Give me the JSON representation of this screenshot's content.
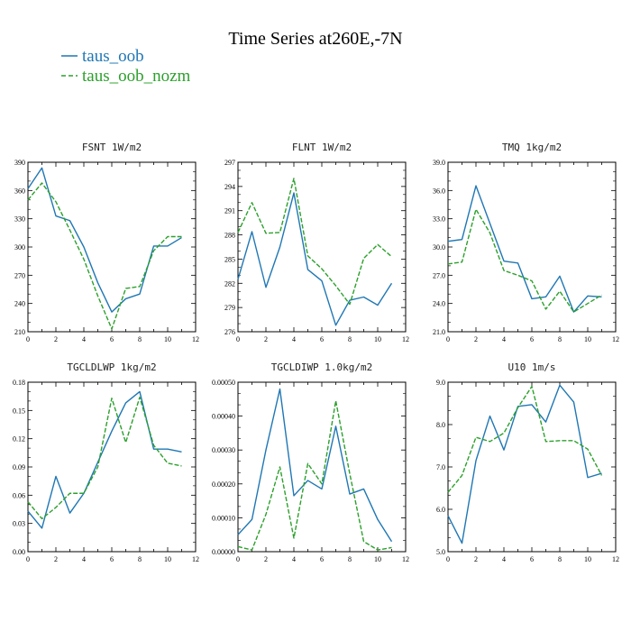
{
  "figure": {
    "title": "Time Series at260E,-7N"
  },
  "legend": [
    {
      "name": "taus_oob",
      "color": "#1f77b4",
      "dash": "solid"
    },
    {
      "name": "taus_oob_nozm",
      "color": "#2ca02c",
      "dash": "dashed"
    }
  ],
  "chart_data": [
    {
      "type": "line",
      "title": "FSNT  1W/m2",
      "x": [
        0,
        1,
        2,
        3,
        4,
        5,
        6,
        7,
        8,
        9,
        10,
        11
      ],
      "xlim": [
        0,
        12
      ],
      "xticks": [
        0,
        2,
        4,
        6,
        8,
        10,
        12
      ],
      "ylim": [
        210,
        390
      ],
      "yticks": [
        "210",
        "240",
        "270",
        "300",
        "330",
        "360",
        "390"
      ],
      "series": [
        {
          "name": "taus_oob",
          "values": [
            362,
            384,
            333,
            328,
            300,
            262,
            231,
            245,
            250,
            301,
            301,
            310
          ]
        },
        {
          "name": "taus_oob_nozm",
          "values": [
            350,
            368,
            348,
            318,
            287,
            248,
            213,
            256,
            258,
            296,
            311,
            311
          ]
        }
      ]
    },
    {
      "type": "line",
      "title": "FLNT  1W/m2",
      "x": [
        0,
        1,
        2,
        3,
        4,
        5,
        6,
        7,
        8,
        9,
        10,
        11
      ],
      "xlim": [
        0,
        12
      ],
      "xticks": [
        0,
        2,
        4,
        6,
        8,
        10,
        12
      ],
      "ylim": [
        276,
        297
      ],
      "yticks": [
        "276",
        "279",
        "282",
        "285",
        "288",
        "291",
        "294",
        "297"
      ],
      "series": [
        {
          "name": "taus_oob",
          "values": [
            282.5,
            288.4,
            281.5,
            286.5,
            293.2,
            283.7,
            282.3,
            276.8,
            279.9,
            280.3,
            279.3,
            282.0
          ]
        },
        {
          "name": "taus_oob_nozm",
          "values": [
            288.3,
            292.0,
            288.2,
            288.3,
            295.0,
            285.4,
            283.8,
            281.7,
            279.4,
            285.1,
            286.8,
            285.3
          ]
        }
      ]
    },
    {
      "type": "line",
      "title": "TMQ  1kg/m2",
      "x": [
        0,
        1,
        2,
        3,
        4,
        5,
        6,
        7,
        8,
        9,
        10,
        11
      ],
      "xlim": [
        0,
        12
      ],
      "xticks": [
        0,
        2,
        4,
        6,
        8,
        10,
        12
      ],
      "ylim": [
        21.0,
        39.0
      ],
      "yticks": [
        "21.0",
        "24.0",
        "27.0",
        "30.0",
        "33.0",
        "36.0",
        "39.0"
      ],
      "series": [
        {
          "name": "taus_oob",
          "values": [
            30.6,
            30.8,
            36.5,
            32.5,
            28.5,
            28.3,
            24.5,
            24.7,
            26.9,
            23.1,
            24.8,
            24.7
          ]
        },
        {
          "name": "taus_oob_nozm",
          "values": [
            28.2,
            28.4,
            34.0,
            31.5,
            27.5,
            27.0,
            26.4,
            23.4,
            25.3,
            23.1,
            24.0,
            24.9
          ]
        }
      ]
    },
    {
      "type": "line",
      "title": "TGCLDLWP  1kg/m2",
      "x": [
        0,
        1,
        2,
        3,
        4,
        5,
        6,
        7,
        8,
        9,
        10,
        11
      ],
      "xlim": [
        0,
        12
      ],
      "xticks": [
        0,
        2,
        4,
        6,
        8,
        10,
        12
      ],
      "ylim": [
        0.0,
        0.18
      ],
      "yticks": [
        "0.00",
        "0.03",
        "0.06",
        "0.09",
        "0.12",
        "0.15",
        "0.18"
      ],
      "series": [
        {
          "name": "taus_oob",
          "values": [
            0.043,
            0.025,
            0.08,
            0.041,
            0.062,
            0.095,
            0.128,
            0.158,
            0.17,
            0.109,
            0.109,
            0.106
          ]
        },
        {
          "name": "taus_oob_nozm",
          "values": [
            0.053,
            0.035,
            0.047,
            0.062,
            0.062,
            0.09,
            0.163,
            0.116,
            0.164,
            0.113,
            0.094,
            0.091
          ]
        }
      ]
    },
    {
      "type": "line",
      "title": "TGCLDIWP  1.0kg/m2",
      "x": [
        0,
        1,
        2,
        3,
        4,
        5,
        6,
        7,
        8,
        9,
        10,
        11
      ],
      "xlim": [
        0,
        12
      ],
      "xticks": [
        0,
        2,
        4,
        6,
        8,
        10,
        12
      ],
      "ylim": [
        0.0,
        0.0005
      ],
      "yticks": [
        "0.00000",
        "0.00010",
        "0.00020",
        "0.00030",
        "0.00040",
        "0.00050"
      ],
      "series": [
        {
          "name": "taus_oob",
          "values": [
            5e-05,
            9.5e-05,
            0.0003,
            0.00048,
            0.000165,
            0.00021,
            0.000185,
            0.00037,
            0.00017,
            0.000185,
            9.5e-05,
            3e-05
          ]
        },
        {
          "name": "taus_oob_nozm",
          "values": [
            1.5e-05,
            5e-06,
            0.00011,
            0.00025,
            4e-05,
            0.00026,
            0.0002,
            0.000445,
            0.00023,
            3e-05,
            5e-06,
            1.2e-05
          ]
        }
      ]
    },
    {
      "type": "line",
      "title": "U10  1m/s",
      "x": [
        0,
        1,
        2,
        3,
        4,
        5,
        6,
        7,
        8,
        9,
        10,
        11
      ],
      "xlim": [
        0,
        12
      ],
      "xticks": [
        0,
        2,
        4,
        6,
        8,
        10,
        12
      ],
      "ylim": [
        5.0,
        9.0
      ],
      "yticks": [
        "5.0",
        "6.0",
        "7.0",
        "8.0",
        "9.0"
      ],
      "series": [
        {
          "name": "taus_oob",
          "values": [
            5.85,
            5.2,
            7.15,
            8.2,
            7.4,
            8.43,
            8.47,
            8.06,
            8.93,
            8.53,
            6.75,
            6.85
          ]
        },
        {
          "name": "taus_oob_nozm",
          "values": [
            6.4,
            6.8,
            7.7,
            7.6,
            7.8,
            8.4,
            8.9,
            7.6,
            7.62,
            7.62,
            7.42,
            6.8
          ]
        }
      ]
    }
  ]
}
